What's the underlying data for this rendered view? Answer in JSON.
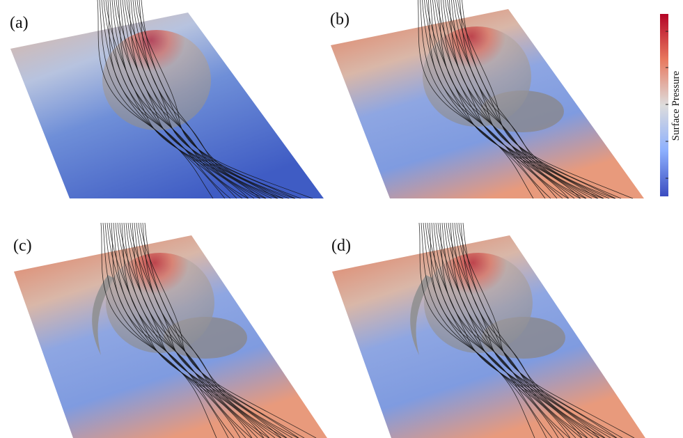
{
  "panels": [
    {
      "label": "(a)"
    },
    {
      "label": "(b)"
    },
    {
      "label": "(c)"
    },
    {
      "label": "(d)"
    }
  ],
  "colorbar": {
    "label": "Surface Pressure"
  }
}
